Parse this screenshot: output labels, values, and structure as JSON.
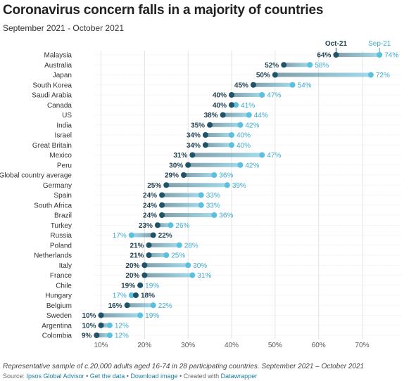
{
  "title": "Coronavirus concern falls in a majority of countries",
  "subtitle": "September 2021 - October 2021",
  "notes": "Representative sample of c.20,000 adults aged 16-74 in 28 participating countries. September 2021 – October 2021",
  "source": {
    "prefix": "Source: ",
    "source_name": "Ipsos Global Advisor",
    "sep1": " • ",
    "get_data": "Get the data",
    "sep2": " • ",
    "download": "Download image",
    "sep3": " • Created with ",
    "created_with": "Datawrapper"
  },
  "colors": {
    "oct": "#1f5367",
    "sep": "#5bc0de",
    "oct_label": "#1f3f4e",
    "sep_label": "#3fa9cc"
  },
  "chart_data": {
    "type": "dot",
    "series": [
      {
        "name": "Oct-21",
        "key": "oct"
      },
      {
        "name": "Sep-21",
        "key": "sep"
      }
    ],
    "x_ticks": [
      "10%",
      "20%",
      "30%",
      "40%",
      "50%",
      "60%",
      "70%"
    ],
    "xlim": [
      8,
      75
    ],
    "rows": [
      {
        "country": "Malaysia",
        "oct": 64,
        "sep": 74
      },
      {
        "country": "Australia",
        "oct": 52,
        "sep": 58
      },
      {
        "country": "Japan",
        "oct": 50,
        "sep": 72
      },
      {
        "country": "South Korea",
        "oct": 45,
        "sep": 54
      },
      {
        "country": "Saudi Arabia",
        "oct": 40,
        "sep": 47
      },
      {
        "country": "Canada",
        "oct": 40,
        "sep": 41
      },
      {
        "country": "US",
        "oct": 38,
        "sep": 44
      },
      {
        "country": "India",
        "oct": 35,
        "sep": 42
      },
      {
        "country": "Israel",
        "oct": 34,
        "sep": 40
      },
      {
        "country": "Great Britain",
        "oct": 34,
        "sep": 40
      },
      {
        "country": "Mexico",
        "oct": 31,
        "sep": 47
      },
      {
        "country": "Peru",
        "oct": 30,
        "sep": 42
      },
      {
        "country": "Global country average",
        "oct": 29,
        "sep": 36
      },
      {
        "country": "Germany",
        "oct": 25,
        "sep": 39
      },
      {
        "country": "Spain",
        "oct": 24,
        "sep": 33
      },
      {
        "country": "South Africa",
        "oct": 24,
        "sep": 33
      },
      {
        "country": "Brazil",
        "oct": 24,
        "sep": 36
      },
      {
        "country": "Turkey",
        "oct": 23,
        "sep": 26
      },
      {
        "country": "Russia",
        "oct": 22,
        "sep": 17
      },
      {
        "country": "Poland",
        "oct": 21,
        "sep": 28
      },
      {
        "country": "Netherlands",
        "oct": 21,
        "sep": 25
      },
      {
        "country": "Italy",
        "oct": 20,
        "sep": 30
      },
      {
        "country": "France",
        "oct": 20,
        "sep": 31
      },
      {
        "country": "Chile",
        "oct": 19,
        "sep": 19
      },
      {
        "country": "Hungary",
        "oct": 18,
        "sep": 17
      },
      {
        "country": "Belgium",
        "oct": 16,
        "sep": 22
      },
      {
        "country": "Sweden",
        "oct": 10,
        "sep": 19
      },
      {
        "country": "Argentina",
        "oct": 10,
        "sep": 12
      },
      {
        "country": "Colombia",
        "oct": 9,
        "sep": 12
      }
    ]
  }
}
